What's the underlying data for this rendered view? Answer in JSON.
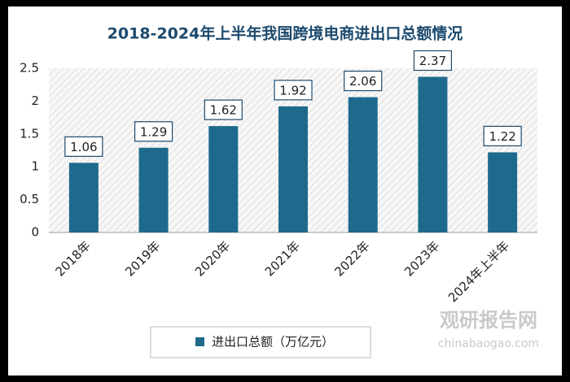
{
  "chart_data": {
    "type": "bar",
    "title": "2018-2024年上半年我国跨境电商进出口总额情况",
    "categories": [
      "2018年",
      "2019年",
      "2020年",
      "2021年",
      "2022年",
      "2023年",
      "2024年上半年"
    ],
    "series": [
      {
        "name": "进出口总额（万亿元）",
        "color": "#1d6a8c",
        "values": [
          1.06,
          1.29,
          1.62,
          1.92,
          2.06,
          2.37,
          1.22
        ]
      }
    ],
    "ylim": [
      0,
      2.5
    ],
    "yticks": [
      0,
      0.5,
      1,
      1.5,
      2,
      2.5
    ],
    "legend": "bottom",
    "watermark": {
      "name": "观研报告网",
      "url": "chinabaogao.com"
    }
  }
}
